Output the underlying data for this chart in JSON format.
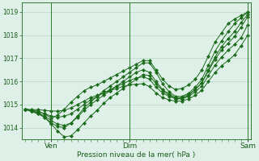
{
  "bg_color": "#dff0e8",
  "grid_color": "#b8d8c8",
  "line_color": "#1a6b1a",
  "marker_color": "#1a6b1a",
  "xlabel": "Pression niveau de la mer( hPa )",
  "xlabel_color": "#1a5c1a",
  "tick_color": "#1a5c1a",
  "ylim": [
    1013.5,
    1019.4
  ],
  "yticks": [
    1014,
    1015,
    1016,
    1017,
    1018,
    1019
  ],
  "xtick_labels": [
    "Ven",
    "Dim",
    "Sam"
  ],
  "xtick_positions": [
    4,
    16,
    34
  ],
  "vline_positions": [
    4,
    16,
    34
  ],
  "series": [
    [
      1014.8,
      1014.75,
      1014.7,
      1014.6,
      1014.4,
      1014.55,
      1014.8,
      1015.1,
      1015.35,
      1015.6,
      1015.75,
      1015.85,
      1016.0,
      1016.15,
      1016.3,
      1016.45,
      1016.6,
      1016.75,
      1016.9,
      1016.9,
      1016.5,
      1016.1,
      1015.8,
      1015.65,
      1015.7,
      1015.85,
      1016.1,
      1016.5,
      1017.1,
      1017.7,
      1018.1,
      1018.5,
      1018.7,
      1018.85,
      1019.0
    ],
    [
      1014.8,
      1014.7,
      1014.6,
      1014.45,
      1014.2,
      1014.05,
      1014.0,
      1014.2,
      1014.5,
      1014.85,
      1015.1,
      1015.35,
      1015.6,
      1015.8,
      1016.0,
      1016.2,
      1016.4,
      1016.6,
      1016.8,
      1016.8,
      1016.4,
      1015.9,
      1015.55,
      1015.35,
      1015.35,
      1015.5,
      1015.75,
      1016.1,
      1016.7,
      1017.3,
      1017.75,
      1018.15,
      1018.5,
      1018.75,
      1019.0
    ],
    [
      1014.8,
      1014.7,
      1014.6,
      1014.45,
      1014.15,
      1013.85,
      1013.6,
      1013.65,
      1013.9,
      1014.2,
      1014.5,
      1014.75,
      1015.05,
      1015.3,
      1015.5,
      1015.7,
      1015.9,
      1016.1,
      1016.3,
      1016.25,
      1015.9,
      1015.6,
      1015.4,
      1015.25,
      1015.25,
      1015.4,
      1015.65,
      1015.95,
      1016.5,
      1017.05,
      1017.5,
      1017.85,
      1018.15,
      1018.55,
      1018.9
    ],
    [
      1014.8,
      1014.72,
      1014.65,
      1014.5,
      1014.3,
      1014.15,
      1014.1,
      1014.2,
      1014.45,
      1014.75,
      1015.0,
      1015.2,
      1015.4,
      1015.6,
      1015.8,
      1016.0,
      1016.2,
      1016.4,
      1016.5,
      1016.4,
      1016.0,
      1015.65,
      1015.45,
      1015.3,
      1015.3,
      1015.45,
      1015.65,
      1015.95,
      1016.45,
      1016.95,
      1017.35,
      1017.65,
      1017.95,
      1018.35,
      1018.8
    ],
    [
      1014.8,
      1014.75,
      1014.7,
      1014.6,
      1014.5,
      1014.45,
      1014.5,
      1014.6,
      1014.8,
      1015.0,
      1015.2,
      1015.35,
      1015.5,
      1015.65,
      1015.8,
      1015.9,
      1016.05,
      1016.15,
      1016.2,
      1016.1,
      1015.75,
      1015.5,
      1015.35,
      1015.25,
      1015.25,
      1015.35,
      1015.55,
      1015.8,
      1016.25,
      1016.7,
      1017.05,
      1017.35,
      1017.6,
      1017.9,
      1018.45
    ],
    [
      1014.8,
      1014.78,
      1014.78,
      1014.75,
      1014.72,
      1014.72,
      1014.75,
      1014.85,
      1015.0,
      1015.15,
      1015.3,
      1015.4,
      1015.5,
      1015.6,
      1015.7,
      1015.78,
      1015.85,
      1015.88,
      1015.9,
      1015.78,
      1015.5,
      1015.3,
      1015.2,
      1015.15,
      1015.15,
      1015.25,
      1015.4,
      1015.62,
      1016.0,
      1016.38,
      1016.68,
      1016.9,
      1017.15,
      1017.55,
      1018.0
    ]
  ],
  "n_points": 35
}
